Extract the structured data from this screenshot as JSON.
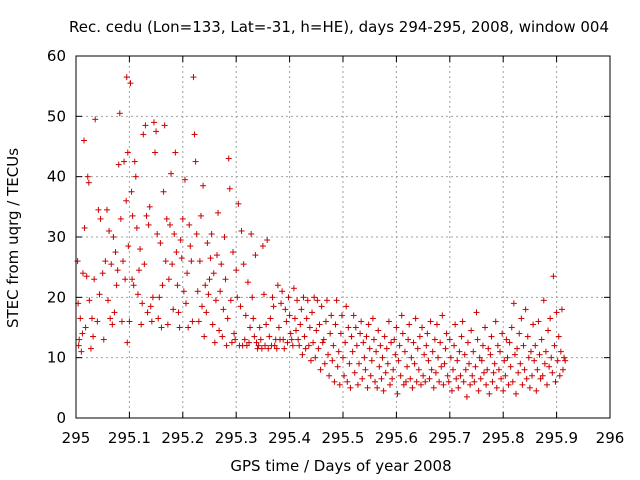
{
  "chart_data": {
    "type": "scatter",
    "title": "Rec. cedu (Lon=133, Lat=-31, h=HE), days 294-295, 2008, window 004",
    "xlabel": "GPS time / Days of year 2008",
    "ylabel": "STEC from uqrg / TECUs",
    "xlim": [
      295,
      296
    ],
    "ylim": [
      0,
      60
    ],
    "xticks": [
      295,
      295.1,
      295.2,
      295.3,
      295.4,
      295.5,
      295.6,
      295.7,
      295.8,
      295.9,
      296
    ],
    "xtick_labels": [
      "295",
      "295.1",
      "295.2",
      "295.3",
      "295.4",
      "295.5",
      "295.6",
      "295.7",
      "295.8",
      "295.9",
      "296"
    ],
    "yticks": [
      0,
      10,
      20,
      30,
      40,
      50,
      60
    ],
    "ytick_labels": [
      "0",
      "10",
      "20",
      "30",
      "40",
      "50",
      "60"
    ],
    "grid": true,
    "marker": "+",
    "color": "#cc0000",
    "series": [
      {
        "name": "STEC",
        "x": [
          295.003,
          295.004,
          295.005,
          295.006,
          295.008,
          295.01,
          295.012,
          295.013,
          295.015,
          295.016,
          295.018,
          295.02,
          295.022,
          295.024,
          295.025,
          295.028,
          295.03,
          295.032,
          295.034,
          295.036,
          295.04,
          295.042,
          295.044,
          295.046,
          295.05,
          295.052,
          295.055,
          295.058,
          295.06,
          295.062,
          295.064,
          295.066,
          295.068,
          295.07,
          295.072,
          295.074,
          295.076,
          295.078,
          295.08,
          295.082,
          295.084,
          295.086,
          295.088,
          295.09,
          295.092,
          295.094,
          295.095,
          295.096,
          295.097,
          295.098,
          295.1,
          295.102,
          295.104,
          295.105,
          295.106,
          295.108,
          295.11,
          295.112,
          295.114,
          295.116,
          295.118,
          295.12,
          295.122,
          295.124,
          295.126,
          295.128,
          295.13,
          295.132,
          295.134,
          295.136,
          295.138,
          295.14,
          295.142,
          295.144,
          295.146,
          295.148,
          295.15,
          295.152,
          295.154,
          295.156,
          295.158,
          295.16,
          295.162,
          295.164,
          295.166,
          295.168,
          295.17,
          295.172,
          295.174,
          295.176,
          295.178,
          295.18,
          295.182,
          295.184,
          295.186,
          295.188,
          295.19,
          295.192,
          295.194,
          295.196,
          295.198,
          295.2,
          295.202,
          295.204,
          295.206,
          295.208,
          295.21,
          295.212,
          295.214,
          295.216,
          295.218,
          295.22,
          295.222,
          295.224,
          295.226,
          295.228,
          295.23,
          295.232,
          295.234,
          295.236,
          295.238,
          295.24,
          295.242,
          295.244,
          295.246,
          295.248,
          295.25,
          295.252,
          295.254,
          295.256,
          295.258,
          295.26,
          295.262,
          295.264,
          295.266,
          295.268,
          295.27,
          295.272,
          295.274,
          295.276,
          295.278,
          295.28,
          295.282,
          295.284,
          295.286,
          295.288,
          295.29,
          295.292,
          295.294,
          295.296,
          295.298,
          295.3,
          295.302,
          295.304,
          295.306,
          295.308,
          295.31,
          295.312,
          295.314,
          295.316,
          295.318,
          295.32,
          295.322,
          295.324,
          295.326,
          295.328,
          295.33,
          295.332,
          295.334,
          295.336,
          295.338,
          295.34,
          295.342,
          295.344,
          295.346,
          295.348,
          295.35,
          295.352,
          295.354,
          295.356,
          295.358,
          295.36,
          295.362,
          295.364,
          295.366,
          295.368,
          295.37,
          295.372,
          295.374,
          295.376,
          295.378,
          295.38,
          295.382,
          295.384,
          295.386,
          295.388,
          295.39,
          295.392,
          295.394,
          295.396,
          295.398,
          295.4,
          295.402,
          295.404,
          295.406,
          295.408,
          295.41,
          295.412,
          295.414,
          295.416,
          295.418,
          295.42,
          295.422,
          295.424,
          295.426,
          295.428,
          295.43,
          295.432,
          295.434,
          295.436,
          295.438,
          295.44,
          295.442,
          295.444,
          295.446,
          295.448,
          295.45,
          295.452,
          295.454,
          295.456,
          295.458,
          295.46,
          295.462,
          295.464,
          295.466,
          295.468,
          295.47,
          295.472,
          295.474,
          295.476,
          295.478,
          295.48,
          295.482,
          295.484,
          295.486,
          295.488,
          295.49,
          295.492,
          295.494,
          295.496,
          295.498,
          295.5,
          295.502,
          295.504,
          295.506,
          295.508,
          295.51,
          295.512,
          295.514,
          295.516,
          295.518,
          295.52,
          295.522,
          295.524,
          295.526,
          295.528,
          295.53,
          295.532,
          295.534,
          295.536,
          295.538,
          295.54,
          295.542,
          295.544,
          295.546,
          295.548,
          295.55,
          295.552,
          295.554,
          295.556,
          295.558,
          295.56,
          295.562,
          295.564,
          295.566,
          295.568,
          295.57,
          295.572,
          295.574,
          295.576,
          295.578,
          295.58,
          295.582,
          295.584,
          295.586,
          295.588,
          295.59,
          295.592,
          295.594,
          295.596,
          295.598,
          295.6,
          295.602,
          295.604,
          295.606,
          295.608,
          295.61,
          295.612,
          295.614,
          295.616,
          295.618,
          295.62,
          295.622,
          295.624,
          295.626,
          295.628,
          295.63,
          295.632,
          295.634,
          295.636,
          295.638,
          295.64,
          295.642,
          295.644,
          295.646,
          295.648,
          295.65,
          295.652,
          295.654,
          295.656,
          295.658,
          295.66,
          295.662,
          295.664,
          295.666,
          295.668,
          295.67,
          295.672,
          295.674,
          295.676,
          295.678,
          295.68,
          295.682,
          295.684,
          295.686,
          295.688,
          295.69,
          295.692,
          295.694,
          295.696,
          295.698,
          295.7,
          295.702,
          295.704,
          295.706,
          295.708,
          295.71,
          295.712,
          295.714,
          295.716,
          295.718,
          295.72,
          295.722,
          295.724,
          295.726,
          295.728,
          295.73,
          295.732,
          295.734,
          295.736,
          295.738,
          295.74,
          295.742,
          295.744,
          295.746,
          295.748,
          295.75,
          295.752,
          295.754,
          295.756,
          295.758,
          295.76,
          295.762,
          295.764,
          295.766,
          295.768,
          295.77,
          295.772,
          295.774,
          295.776,
          295.778,
          295.78,
          295.782,
          295.784,
          295.786,
          295.788,
          295.79,
          295.792,
          295.794,
          295.796,
          295.798,
          295.8,
          295.802,
          295.804,
          295.806,
          295.808,
          295.81,
          295.812,
          295.814,
          295.816,
          295.818,
          295.82,
          295.822,
          295.824,
          295.826,
          295.828,
          295.83,
          295.832,
          295.834,
          295.836,
          295.838,
          295.84,
          295.842,
          295.844,
          295.846,
          295.848,
          295.85,
          295.852,
          295.854,
          295.856,
          295.858,
          295.86,
          295.862,
          295.864,
          295.866,
          295.868,
          295.87,
          295.872,
          295.874,
          295.876,
          295.878,
          295.88,
          295.882,
          295.884,
          295.886,
          295.888,
          295.89,
          295.892,
          295.894,
          295.896,
          295.898,
          295.9,
          295.902,
          295.904,
          295.906,
          295.908,
          295.91,
          295.912,
          295.914,
          295.916
        ],
        "y": [
          26,
          19,
          12,
          13,
          16.5,
          11,
          14,
          24,
          46,
          31.5,
          15,
          23.5,
          40,
          39,
          19.5,
          11.5,
          16.5,
          13.5,
          23,
          49.5,
          16,
          34.5,
          20.5,
          33,
          24,
          13,
          26,
          34.5,
          19.5,
          31,
          16.5,
          25.5,
          15.5,
          30,
          17.5,
          27.5,
          22,
          24.5,
          42,
          50.5,
          33,
          16,
          26,
          42.5,
          23,
          36,
          56.5,
          12.5,
          44,
          28.5,
          16,
          55.5,
          37.5,
          23,
          33.5,
          22,
          42.5,
          40,
          31.5,
          20.5,
          24.5,
          28,
          15.5,
          19,
          47,
          25.5,
          48.5,
          33.5,
          17.5,
          32,
          35,
          18.5,
          16,
          20,
          49,
          44,
          47.5,
          30.5,
          16.5,
          20,
          29,
          15,
          22,
          37.5,
          48.5,
          26,
          33,
          15.5,
          23,
          32,
          40.5,
          25.5,
          18,
          30.5,
          44,
          27.5,
          22,
          17.5,
          15,
          29.5,
          26.5,
          33,
          21,
          39.5,
          19,
          24,
          15,
          32,
          28.5,
          26,
          16,
          56.5,
          47,
          42.5,
          30.5,
          21,
          16,
          26,
          33.5,
          18.5,
          38.5,
          13.5,
          22,
          17.5,
          29,
          20.5,
          23,
          26.5,
          30.5,
          15.5,
          24,
          12.5,
          19.5,
          27,
          34,
          14.5,
          21,
          25.5,
          13.5,
          18,
          30,
          23,
          12,
          16.5,
          43,
          38,
          19.5,
          12.5,
          27.5,
          14,
          13,
          24.5,
          20,
          35.5,
          12,
          18.5,
          31,
          12,
          25.5,
          13,
          17,
          12,
          22.5,
          12.5,
          15,
          30.5,
          20,
          16.5,
          13.5,
          27,
          12.5,
          11.5,
          12,
          15,
          13,
          11.5,
          28.5,
          20.5,
          12,
          15.5,
          29.5,
          11.5,
          13.5,
          16.5,
          12,
          20,
          18.5,
          12,
          13,
          11.5,
          22,
          15,
          13,
          19,
          21,
          13,
          11.5,
          18,
          16,
          12.5,
          20,
          17,
          14,
          13,
          12,
          21.5,
          16.5,
          14.5,
          19.5,
          13,
          12,
          15.5,
          18,
          10.5,
          20,
          13.5,
          11.5,
          16.5,
          19.5,
          12,
          15,
          9.5,
          17.5,
          12.5,
          20,
          10,
          14.5,
          19.5,
          11.5,
          15.5,
          8,
          18.5,
          12.5,
          13,
          9,
          16,
          19.5,
          10.5,
          7,
          14,
          17,
          9.5,
          12,
          6,
          15.5,
          19.5,
          8.5,
          11,
          5.5,
          14,
          17,
          10,
          7,
          12.5,
          18.5,
          6,
          15,
          9,
          5,
          13.5,
          11,
          17,
          7.5,
          15,
          12,
          5.5,
          9,
          14,
          16,
          6.5,
          12.5,
          10,
          8,
          13.5,
          5,
          15.5,
          11.5,
          7,
          9.5,
          16.5,
          13,
          6,
          11,
          5,
          14.5,
          8.5,
          12,
          6.5,
          10,
          4.5,
          13.5,
          7.5,
          11.5,
          9,
          16,
          5.5,
          12.5,
          6.5,
          8,
          13,
          10.5,
          15,
          4,
          9.5,
          12,
          7,
          17,
          14,
          5.5,
          11,
          6,
          8.5,
          13,
          15.5,
          6.5,
          10,
          5,
          12.5,
          9,
          16.5,
          6,
          11.5,
          8,
          13.5,
          5.5,
          15,
          7,
          10.5,
          6,
          12,
          14,
          9.5,
          6.5,
          16,
          8,
          11,
          5,
          13,
          7.5,
          15.5,
          10,
          6,
          12.5,
          8.5,
          17,
          5.5,
          9,
          11.5,
          14,
          7,
          6,
          13,
          10,
          4.5,
          8,
          12,
          15.5,
          6.5,
          9.5,
          5,
          11,
          7,
          13.5,
          16,
          6,
          10.5,
          8,
          3.5,
          12.5,
          9,
          5.5,
          14.5,
          7,
          11,
          6,
          8.5,
          17.5,
          13,
          4.5,
          10,
          6.5,
          9.5,
          12,
          7.5,
          15,
          5.5,
          8,
          11.5,
          4,
          10.5,
          13.5,
          6,
          7.5,
          9,
          16,
          5,
          12,
          8,
          11,
          6.5,
          14,
          4.5,
          9.5,
          7,
          13,
          10,
          5.5,
          12.5,
          8.5,
          15,
          6,
          19,
          10.5,
          4,
          11.5,
          7.5,
          14,
          9,
          16.5,
          5.5,
          12,
          8,
          18,
          6.5,
          13.5,
          10,
          5,
          11,
          7,
          15.5,
          9.5,
          12,
          4.5,
          8,
          16,
          10.5,
          6.5,
          13,
          7,
          19.5,
          9,
          11,
          5.5,
          14.5,
          8.5,
          16.5,
          10,
          7.5,
          23.5,
          12,
          6,
          17.5,
          9.5,
          13.5,
          7,
          11,
          18,
          8,
          10,
          9.5
        ]
      }
    ]
  }
}
